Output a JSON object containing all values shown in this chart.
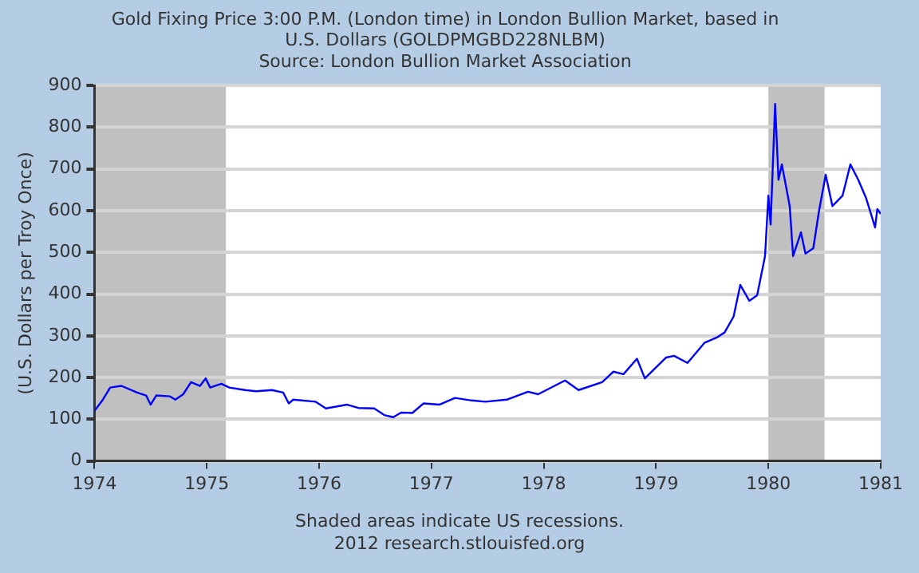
{
  "chart_data": {
    "type": "line",
    "title": "Gold Fixing Price 3:00 P.M. (London time) in London Bullion Market, based in U.S. Dollars (GOLDPMGBD228NLBM)",
    "subtitle": "Source: London Bullion Market Association",
    "ylabel": "(U.S. Dollars per Troy Once)",
    "annotations": [
      "Shaded areas indicate US recessions.",
      "2012 research.stlouisfed.org"
    ],
    "x": [
      1974.0,
      1974.07,
      1974.14,
      1974.24,
      1974.38,
      1974.46,
      1974.5,
      1974.55,
      1974.67,
      1974.72,
      1974.79,
      1974.86,
      1974.94,
      1974.99,
      1975.03,
      1975.13,
      1975.2,
      1975.34,
      1975.44,
      1975.58,
      1975.68,
      1975.73,
      1975.77,
      1975.97,
      1976.06,
      1976.25,
      1976.35,
      1976.49,
      1976.58,
      1976.66,
      1976.73,
      1976.83,
      1976.93,
      1977.07,
      1977.21,
      1977.36,
      1977.48,
      1977.67,
      1977.86,
      1977.95,
      1978.19,
      1978.31,
      1978.52,
      1978.62,
      1978.71,
      1978.83,
      1978.9,
      1979.09,
      1979.16,
      1979.28,
      1979.43,
      1979.54,
      1979.61,
      1979.69,
      1979.75,
      1979.83,
      1979.9,
      1979.97,
      1980.0,
      1980.02,
      1980.06,
      1980.09,
      1980.12,
      1980.19,
      1980.22,
      1980.29,
      1980.33,
      1980.4,
      1980.45,
      1980.51,
      1980.57,
      1980.66,
      1980.73,
      1980.8,
      1980.87,
      1980.95,
      1980.97,
      1981.0
    ],
    "series": [
      {
        "color": "#0000ff",
        "values": [
          120,
          145,
          176,
          180,
          164,
          157,
          135,
          157,
          155,
          147,
          160,
          189,
          180,
          198,
          176,
          185,
          176,
          170,
          167,
          170,
          164,
          138,
          147,
          142,
          126,
          135,
          127,
          126,
          110,
          105,
          116,
          115,
          138,
          135,
          151,
          145,
          142,
          147,
          166,
          160,
          193,
          170,
          189,
          214,
          208,
          245,
          198,
          248,
          252,
          235,
          283,
          296,
          308,
          346,
          422,
          384,
          397,
          491,
          636,
          567,
          856,
          674,
          711,
          611,
          491,
          548,
          497,
          510,
          598,
          686,
          611,
          636,
          711,
          674,
          630,
          560,
          604,
          592
        ]
      }
    ],
    "xlim": [
      1974,
      1981
    ],
    "xticks": [
      1974,
      1975,
      1976,
      1977,
      1978,
      1979,
      1980,
      1981
    ],
    "ylim": [
      0,
      900
    ],
    "yticks": [
      0,
      100,
      200,
      300,
      400,
      500,
      600,
      700,
      800,
      900
    ],
    "bands": [
      {
        "axis": "x",
        "from": 1974,
        "to": 1975.17,
        "color": "#c0c0c0"
      },
      {
        "axis": "x",
        "from": 1980,
        "to": 1980.5,
        "color": "#c0c0c0"
      }
    ],
    "grid": "y",
    "legend": false,
    "marker": "none",
    "line_style": "solid"
  }
}
